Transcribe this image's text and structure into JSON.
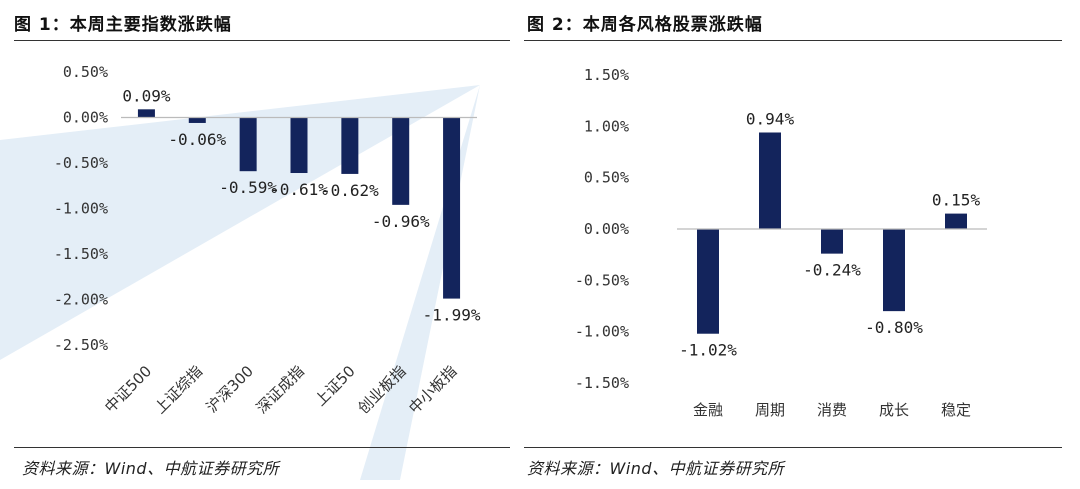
{
  "figures": [
    {
      "title": "图 1：本周主要指数涨跌幅",
      "source": "资料来源：Wind、中航证券研究所"
    },
    {
      "title": "图 2：本周各风格股票涨跌幅",
      "source": "资料来源：Wind、中航证券研究所"
    }
  ],
  "colors": {
    "bar": "#13245c",
    "axis": "#bbbbbb",
    "watermark": "#e4eef7"
  },
  "chart_data": [
    {
      "type": "bar",
      "title": "图 1：本周主要指数涨跌幅",
      "categories": [
        "中证500",
        "上证综指",
        "沪深300",
        "深证成指",
        "上证50",
        "创业板指",
        "中小板指"
      ],
      "values": [
        0.09,
        -0.06,
        -0.59,
        -0.61,
        -0.62,
        -0.96,
        -1.99
      ],
      "labels": [
        "0.09%",
        "-0.06%",
        "-0.59%",
        "-0.61%",
        "-0.62%",
        "-0.96%",
        "-1.99%"
      ],
      "yticks": [
        0.5,
        0.0,
        -0.5,
        -1.0,
        -1.5,
        -2.0,
        -2.5
      ],
      "ytick_labels": [
        "0.50%",
        "0.00%",
        "-0.50%",
        "-1.00%",
        "-1.50%",
        "-2.00%",
        "-2.50%"
      ],
      "ylim": [
        -2.5,
        0.5
      ],
      "xlabel": "",
      "ylabel": ""
    },
    {
      "type": "bar",
      "title": "图 2：本周各风格股票涨跌幅",
      "categories": [
        "金融",
        "周期",
        "消费",
        "成长",
        "稳定"
      ],
      "values": [
        -1.02,
        0.94,
        -0.24,
        -0.8,
        0.15
      ],
      "labels": [
        "-1.02%",
        "0.94%",
        "-0.24%",
        "-0.80%",
        "0.15%"
      ],
      "yticks": [
        1.5,
        1.0,
        0.5,
        0.0,
        -0.5,
        -1.0,
        -1.5
      ],
      "ytick_labels": [
        "1.50%",
        "1.00%",
        "0.50%",
        "0.00%",
        "-0.50%",
        "-1.00%",
        "-1.50%"
      ],
      "ylim": [
        -1.5,
        1.5
      ],
      "xlabel": "",
      "ylabel": ""
    }
  ]
}
